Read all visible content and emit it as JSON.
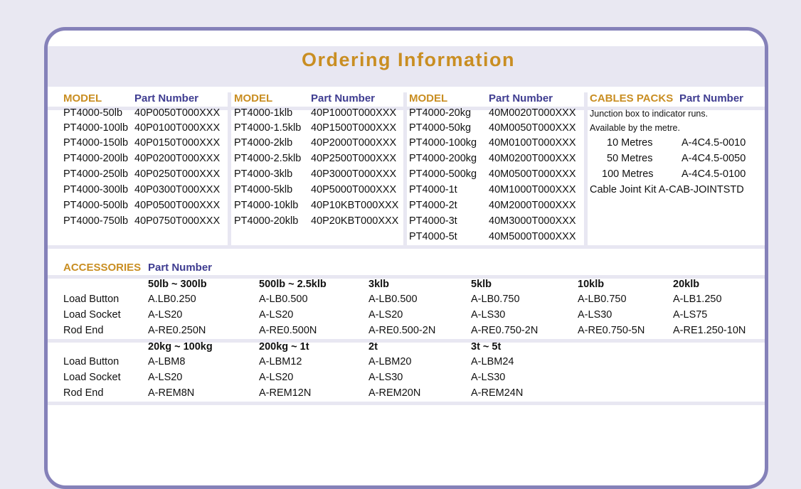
{
  "title": "Ordering Information",
  "colors": {
    "accent_gold": "#c98e22",
    "accent_blue": "#3f3d91",
    "border": "#8581b9",
    "band": "#e8e7f2"
  },
  "models": {
    "model_header": "MODEL",
    "part_header": "Part Number",
    "columns": [
      {
        "rows": [
          [
            "PT4000-50lb",
            "40P0050T000XXX"
          ],
          [
            "PT4000-100lb",
            "40P0100T000XXX"
          ],
          [
            "PT4000-150lb",
            "40P0150T000XXX"
          ],
          [
            "PT4000-200lb",
            "40P0200T000XXX"
          ],
          [
            "PT4000-250lb",
            "40P0250T000XXX"
          ],
          [
            "PT4000-300lb",
            "40P0300T000XXX"
          ],
          [
            "PT4000-500lb",
            "40P0500T000XXX"
          ],
          [
            "PT4000-750lb",
            "40P0750T000XXX"
          ]
        ]
      },
      {
        "rows": [
          [
            "PT4000-1klb",
            "40P1000T000XXX"
          ],
          [
            "PT4000-1.5klb",
            "40P1500T000XXX"
          ],
          [
            "PT4000-2klb",
            "40P2000T000XXX"
          ],
          [
            "PT4000-2.5klb",
            "40P2500T000XXX"
          ],
          [
            "PT4000-3klb",
            "40P3000T000XXX"
          ],
          [
            "PT4000-5klb",
            "40P5000T000XXX"
          ],
          [
            "PT4000-10klb",
            "40P10KBT000XXX"
          ],
          [
            "PT4000-20klb",
            "40P20KBT000XXX"
          ]
        ]
      },
      {
        "rows": [
          [
            "PT4000-20kg",
            "40M0020T000XXX"
          ],
          [
            "PT4000-50kg",
            "40M0050T000XXX"
          ],
          [
            "PT4000-100kg",
            "40M0100T000XXX"
          ],
          [
            "PT4000-200kg",
            "40M0200T000XXX"
          ],
          [
            "PT4000-500kg",
            "40M0500T000XXX"
          ],
          [
            "PT4000-1t",
            "40M1000T000XXX"
          ],
          [
            "PT4000-2t",
            "40M2000T000XXX"
          ],
          [
            "PT4000-3t",
            "40M3000T000XXX"
          ],
          [
            "PT4000-5t",
            "40M5000T000XXX"
          ]
        ]
      }
    ]
  },
  "cables": {
    "header": "CABLES PACKS",
    "part_header": "Part Number",
    "note1": "Junction box to indicator runs.",
    "note2": "Available by the metre.",
    "items": [
      [
        "10 Metres",
        "A-4C4.5-0010"
      ],
      [
        "50 Metres",
        "A-4C4.5-0050"
      ],
      [
        "100 Metres",
        "A-4C4.5-0100"
      ]
    ],
    "joint_kit": "Cable Joint Kit A-CAB-JOINTSTD"
  },
  "accessories": {
    "header": "ACCESSORIES",
    "part_header": "Part Number",
    "row_labels": [
      "Load Button",
      "Load Socket",
      "Rod End"
    ],
    "groups": [
      {
        "columns": [
          {
            "range": "50lb ~ 300lb",
            "parts": [
              "A.LB0.250",
              "A-LS20",
              "A-RE0.250N"
            ]
          },
          {
            "range": "500lb ~ 2.5klb",
            "parts": [
              "A-LB0.500",
              "A-LS20",
              "A-RE0.500N"
            ]
          },
          {
            "range": "3klb",
            "parts": [
              "A-LB0.500",
              "A-LS20",
              "A-RE0.500-2N"
            ]
          },
          {
            "range": "5klb",
            "parts": [
              "A-LB0.750",
              "A-LS30",
              "A-RE0.750-2N"
            ]
          },
          {
            "range": "10klb",
            "parts": [
              "A-LB0.750",
              "A-LS30",
              "A-RE0.750-5N"
            ]
          },
          {
            "range": "20klb",
            "parts": [
              "A-LB1.250",
              "A-LS75",
              "A-RE1.250-10N"
            ]
          }
        ]
      },
      {
        "columns": [
          {
            "range": "20kg ~ 100kg",
            "parts": [
              "A-LBM8",
              "A-LS20",
              "A-REM8N"
            ]
          },
          {
            "range": "200kg ~ 1t",
            "parts": [
              "A-LBM12",
              "A-LS20",
              "A-REM12N"
            ]
          },
          {
            "range": "2t",
            "parts": [
              "A-LBM20",
              "A-LS30",
              "A-REM20N"
            ]
          },
          {
            "range": "3t ~ 5t",
            "parts": [
              "A-LBM24",
              "A-LS30",
              "A-REM24N"
            ]
          }
        ]
      }
    ]
  }
}
